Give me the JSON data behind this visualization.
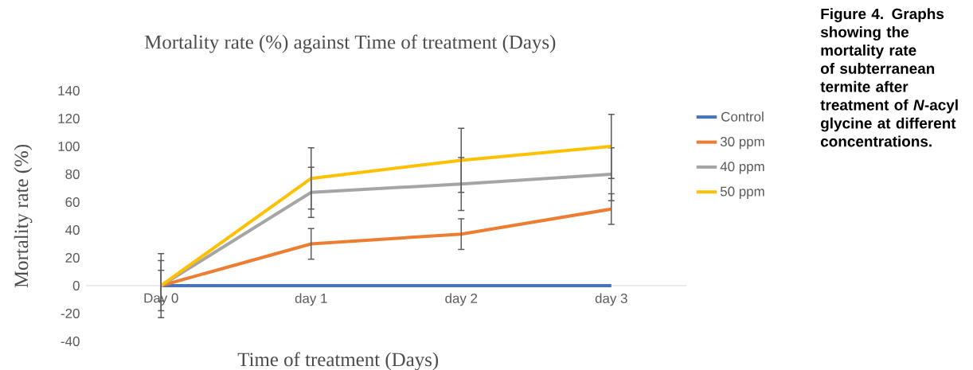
{
  "chart_data": {
    "type": "line",
    "title": "Mortality rate (%) against Time of treatment (Days)",
    "xlabel": "Time of treatment (Days)",
    "ylabel": "Mortality rate (%)",
    "categories": [
      "Day 0",
      "day 1",
      "day 2",
      "day 3"
    ],
    "series": [
      {
        "name": "Control",
        "color": "#4472c4",
        "values": [
          0,
          0,
          0,
          0
        ]
      },
      {
        "name": "30 ppm",
        "color": "#ed7d31",
        "values": [
          0,
          30,
          37,
          55
        ],
        "errors": [
          11,
          11,
          11,
          11
        ]
      },
      {
        "name": "40 ppm",
        "color": "#a5a5a5",
        "values": [
          0,
          67,
          73,
          80
        ],
        "errors": [
          18,
          18,
          19,
          19
        ]
      },
      {
        "name": "50 ppm",
        "color": "#ffc000",
        "values": [
          0,
          77,
          90,
          100
        ],
        "errors": [
          23,
          22,
          23,
          23
        ]
      }
    ],
    "ylim": [
      -40,
      140
    ],
    "yticks": [
      -40,
      -20,
      0,
      20,
      40,
      60,
      80,
      100,
      120,
      140
    ],
    "legend": "right",
    "line_style": "solid",
    "annotations": [
      "Figure 4. Graphs showing the mortality rate of subterranean termite after treatment of *N*-acyl glycine at different concentrations."
    ]
  }
}
